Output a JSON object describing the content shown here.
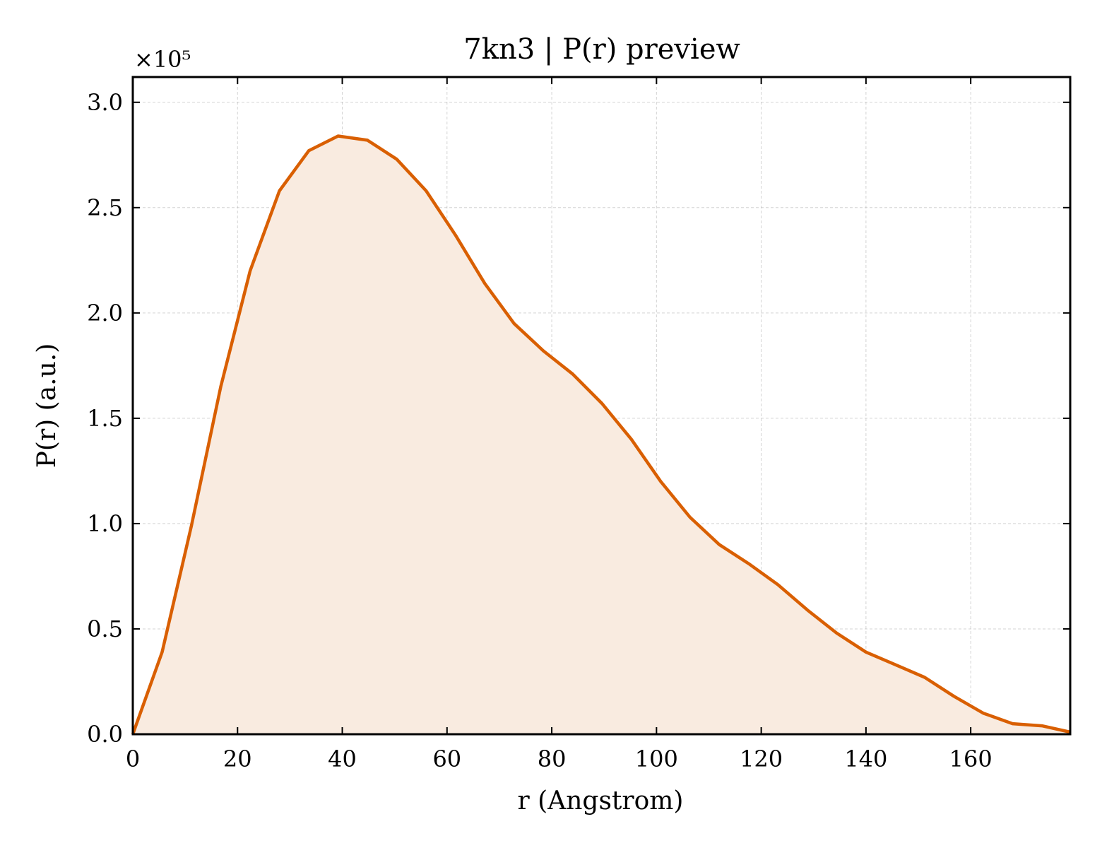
{
  "chart_data": {
    "type": "area",
    "title": "7kn3 | P(r) preview",
    "xlabel": "r (Angstrom)",
    "ylabel": "P(r) (a.u.)",
    "y_offset_label": "×10⁵",
    "xlim": [
      0,
      179
    ],
    "ylim": [
      0,
      3.12
    ],
    "x_ticks": [
      0,
      20,
      40,
      60,
      80,
      100,
      120,
      140,
      160
    ],
    "x_tick_labels": [
      "0",
      "20",
      "40",
      "60",
      "80",
      "100",
      "120",
      "140",
      "160"
    ],
    "y_ticks": [
      0,
      0.5,
      1.0,
      1.5,
      2.0,
      2.5,
      3.0
    ],
    "y_tick_labels": [
      "0.0",
      "0.5",
      "1.0",
      "1.5",
      "2.0",
      "2.5",
      "3.0"
    ],
    "grid": true,
    "line_color": "#d95f02",
    "fill_color": "#f9ebe0",
    "series": [
      {
        "x": [
          0,
          5.6,
          11.2,
          16.8,
          22.4,
          28.0,
          33.6,
          39.2,
          44.8,
          50.4,
          56.0,
          61.6,
          67.2,
          72.8,
          78.4,
          84.0,
          89.6,
          95.2,
          100.8,
          106.4,
          112.0,
          117.6,
          123.2,
          128.8,
          134.4,
          140.0,
          145.6,
          151.2,
          156.8,
          162.4,
          168.0,
          173.6,
          179.0
        ],
        "y": [
          0,
          0.39,
          0.99,
          1.65,
          2.2,
          2.58,
          2.77,
          2.84,
          2.82,
          2.73,
          2.58,
          2.37,
          2.14,
          1.95,
          1.82,
          1.71,
          1.57,
          1.4,
          1.2,
          1.03,
          0.9,
          0.81,
          0.71,
          0.59,
          0.48,
          0.39,
          0.33,
          0.27,
          0.18,
          0.1,
          0.05,
          0.04,
          0.01
        ]
      }
    ]
  }
}
